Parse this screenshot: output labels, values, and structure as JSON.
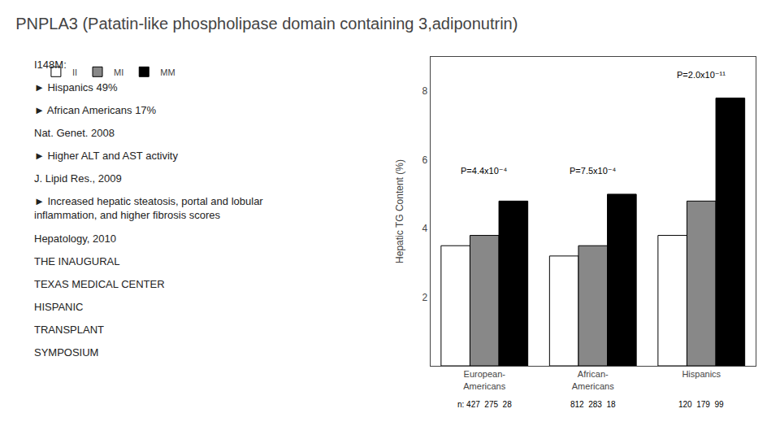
{
  "chart_data": {
    "type": "bar",
    "title": "PNPLA3 (Patatin-like phospholipase domain containing 3,adiponutrin)",
    "categories": [
      "European-\nAmericans",
      "African-\nAmericans",
      "Hispanics"
    ],
    "series": [
      {
        "name": "II",
        "color": "#ffffff",
        "values": [
          3.5,
          3.2,
          3.8
        ]
      },
      {
        "name": "MI",
        "color": "#888888",
        "values": [
          3.8,
          3.5,
          4.8
        ]
      },
      {
        "name": "MM",
        "color": "#000000",
        "values": [
          4.8,
          5.0,
          7.8
        ]
      }
    ],
    "ylabel": "Hepatic TG Content (%)",
    "ylim": [
      0,
      9
    ],
    "yticks": [
      2,
      4,
      6,
      8
    ],
    "grid": false,
    "legend": "upper left",
    "annotations": [
      "I148M:",
      "► Hispanics 49%",
      "► African Americans 17%",
      "Nat. Genet. 2008",
      "► Higher ALT and AST activity",
      "J. Lipid Res., 2009",
      "► Increased hepatic steatosis, portal and lobular inflammation, and higher fibrosis scores",
      "Hepatology, 2010",
      "THE INAUGURAL",
      "TEXAS MEDICAL CENTER",
      "HISPANIC",
      "TRANSPLANT",
      "SYMPOSIUM",
      {
        "text": "P=4.4x10⁻⁴",
        "x": 0,
        "y": 5.5
      },
      {
        "text": "P=7.5x10⁻⁴",
        "x": 1,
        "y": 5.5
      },
      {
        "text": "P=2.0x10⁻¹¹",
        "x": 2,
        "y": 8.3
      },
      {
        "text": "n: 427  275  28",
        "x": 0
      },
      {
        "text": "812  283  18",
        "x": 1
      },
      {
        "text": "120  179  99",
        "x": 2
      }
    ]
  }
}
